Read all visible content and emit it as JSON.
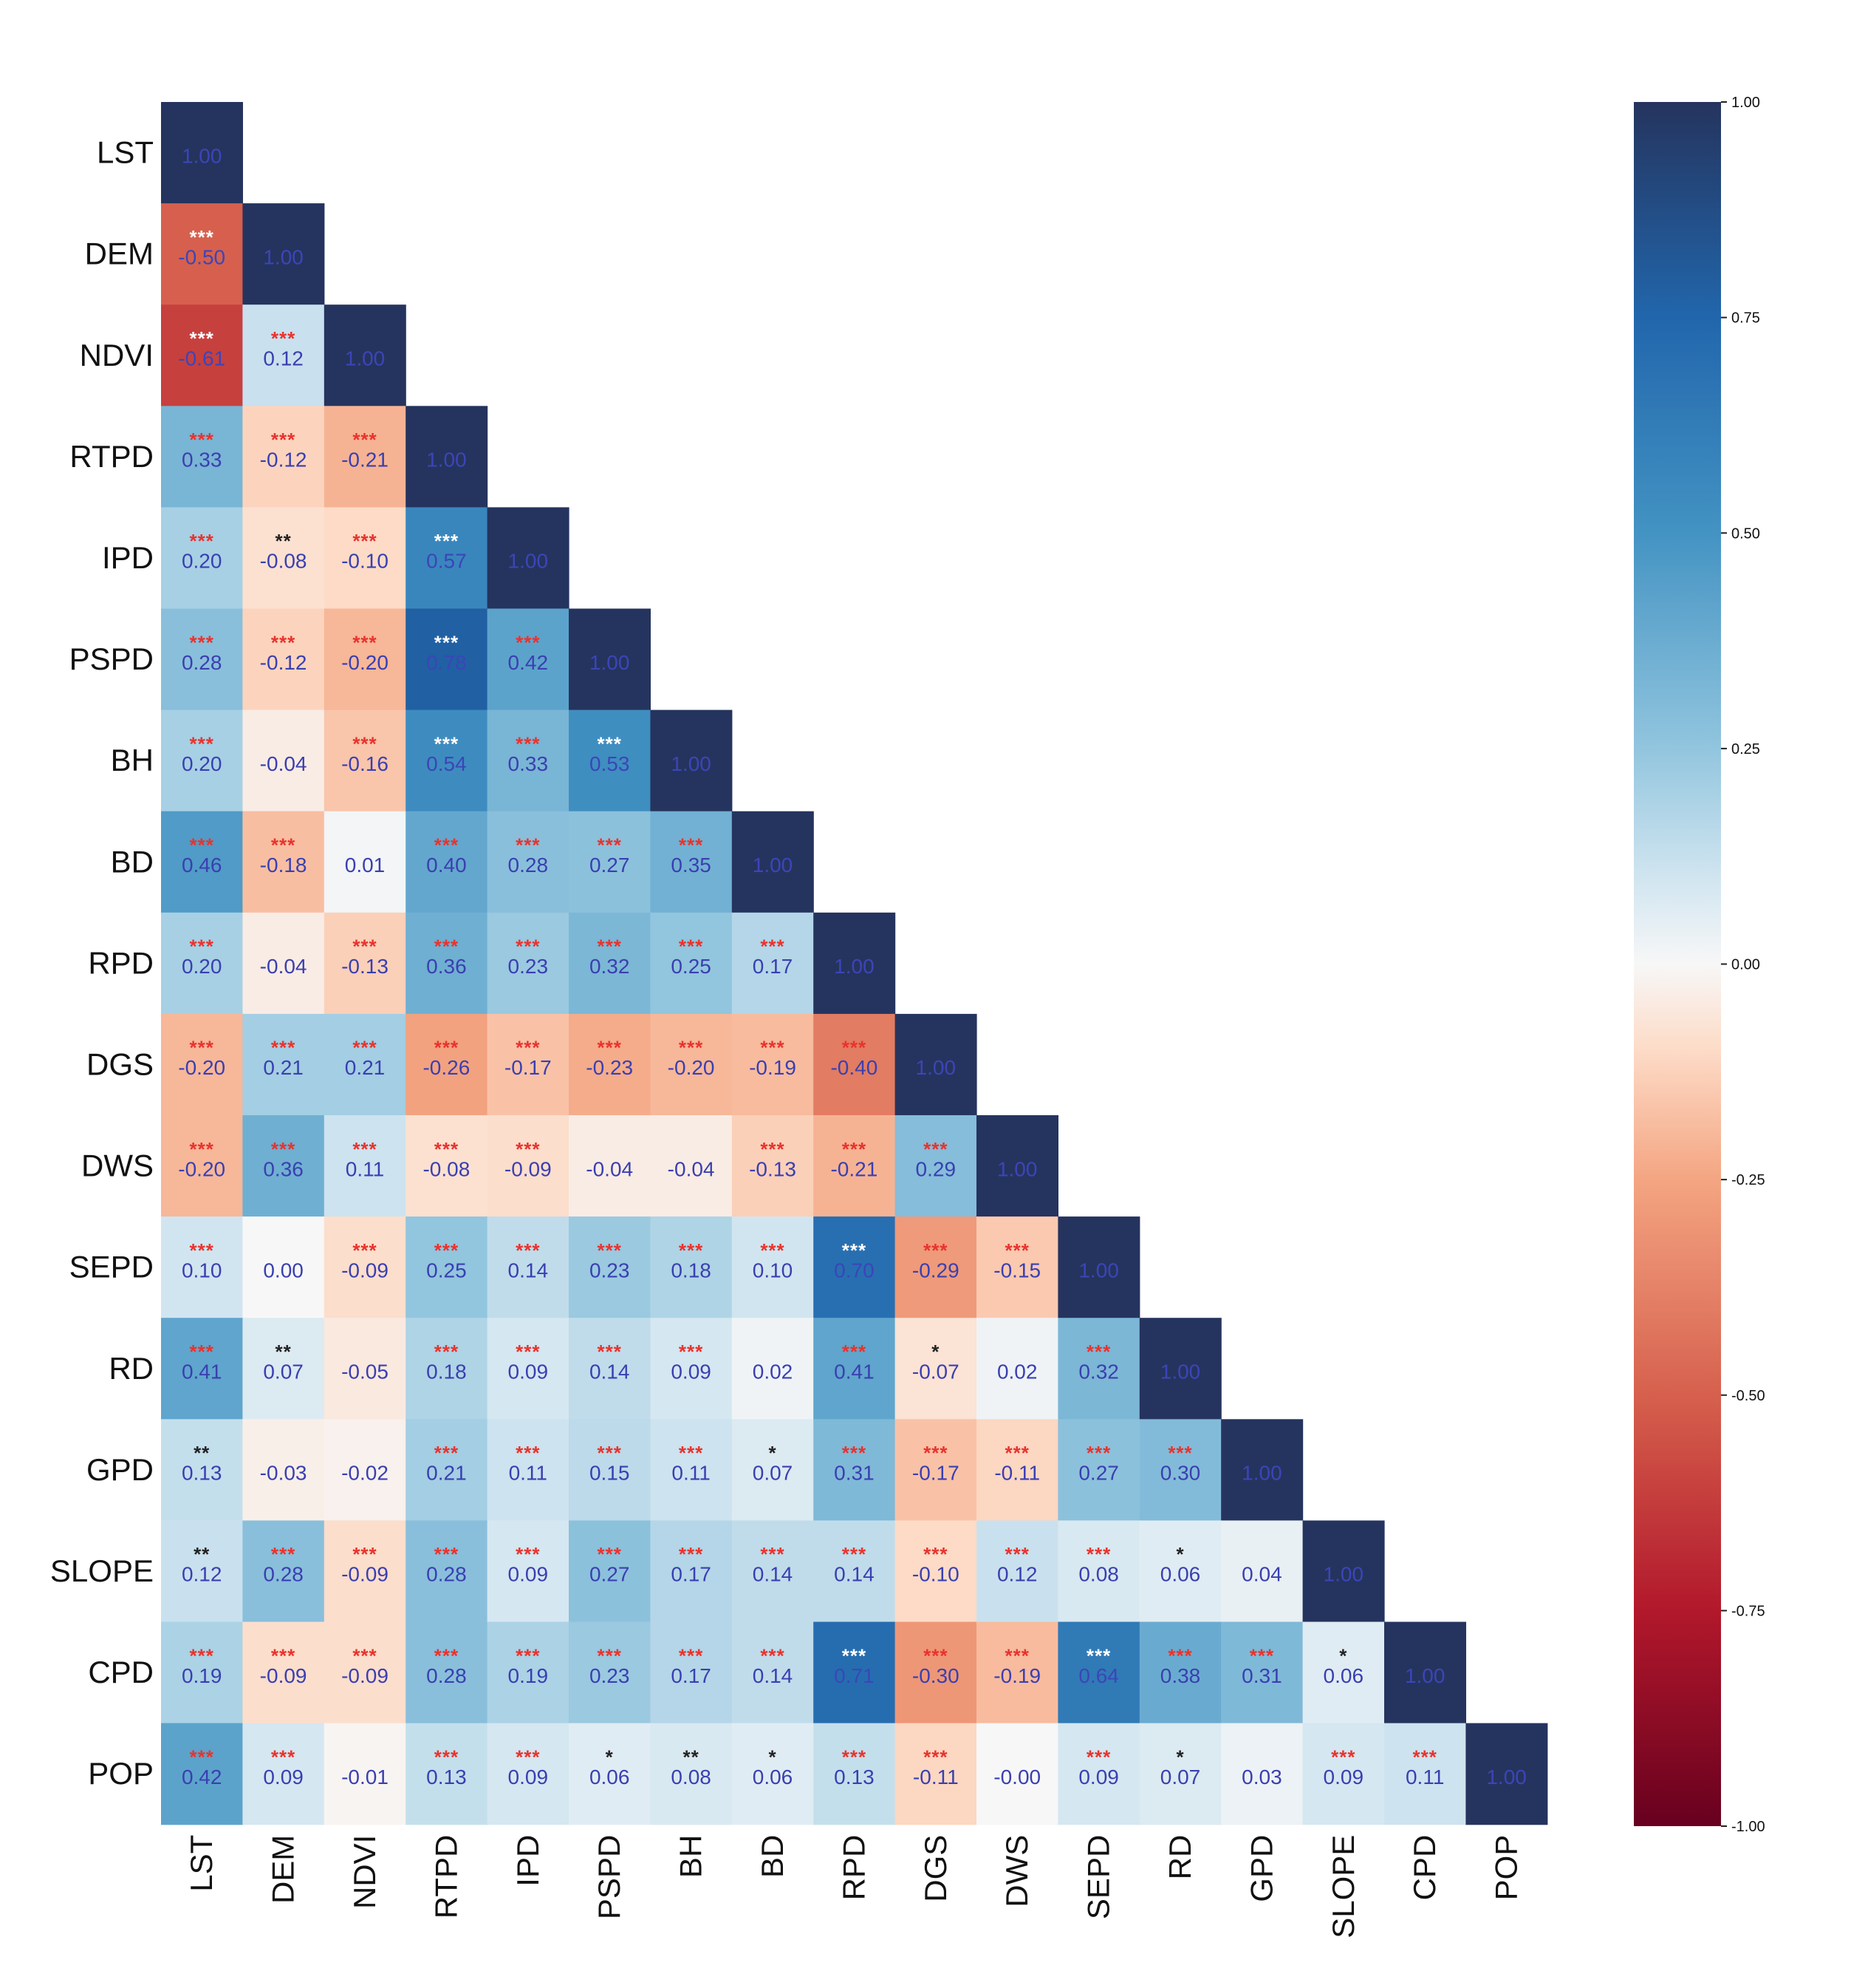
{
  "chart_data": {
    "type": "heatmap",
    "title": "",
    "xlabel": "",
    "ylabel": "",
    "layout": "lower-triangle",
    "labels": [
      "LST",
      "DEM",
      "NDVI",
      "RTPD",
      "IPD",
      "PSPD",
      "BH",
      "BD",
      "RPD",
      "DGS",
      "DWS",
      "SEPD",
      "RD",
      "GPD",
      "SLOPE",
      "CPD",
      "POP"
    ],
    "values": [
      [
        1.0
      ],
      [
        -0.5,
        1.0
      ],
      [
        -0.61,
        0.12,
        1.0
      ],
      [
        0.33,
        -0.12,
        -0.21,
        1.0
      ],
      [
        0.2,
        -0.08,
        -0.1,
        0.57,
        1.0
      ],
      [
        0.28,
        -0.12,
        -0.2,
        0.78,
        0.42,
        1.0
      ],
      [
        0.2,
        -0.04,
        -0.16,
        0.54,
        0.33,
        0.53,
        1.0
      ],
      [
        0.46,
        -0.18,
        0.01,
        0.4,
        0.28,
        0.27,
        0.35,
        1.0
      ],
      [
        0.2,
        -0.04,
        -0.13,
        0.36,
        0.23,
        0.32,
        0.25,
        0.17,
        1.0
      ],
      [
        -0.2,
        0.21,
        0.21,
        -0.26,
        -0.17,
        -0.23,
        -0.2,
        -0.19,
        -0.4,
        1.0
      ],
      [
        -0.2,
        0.36,
        0.11,
        -0.08,
        -0.09,
        -0.04,
        -0.04,
        -0.13,
        -0.21,
        0.29,
        1.0
      ],
      [
        0.1,
        0.0,
        -0.09,
        0.25,
        0.14,
        0.23,
        0.18,
        0.1,
        0.7,
        -0.29,
        -0.15,
        1.0
      ],
      [
        0.41,
        0.07,
        -0.05,
        0.18,
        0.09,
        0.14,
        0.09,
        0.02,
        0.41,
        -0.07,
        0.02,
        0.32,
        1.0
      ],
      [
        0.13,
        -0.03,
        -0.02,
        0.21,
        0.11,
        0.15,
        0.11,
        0.07,
        0.31,
        -0.17,
        -0.11,
        0.27,
        0.3,
        1.0
      ],
      [
        0.12,
        0.28,
        -0.09,
        0.28,
        0.09,
        0.27,
        0.17,
        0.14,
        0.14,
        -0.1,
        0.12,
        0.08,
        0.06,
        0.04,
        1.0
      ],
      [
        0.19,
        -0.09,
        -0.09,
        0.28,
        0.19,
        0.23,
        0.17,
        0.14,
        0.71,
        -0.3,
        -0.19,
        0.64,
        0.38,
        0.31,
        0.06,
        1.0
      ],
      [
        0.42,
        0.09,
        -0.01,
        0.13,
        0.09,
        0.06,
        0.08,
        0.06,
        0.13,
        -0.11,
        -0.0,
        0.09,
        0.07,
        0.03,
        0.09,
        0.11,
        1.0
      ]
    ],
    "significance": [
      [
        ""
      ],
      [
        "***",
        ""
      ],
      [
        "***",
        "***",
        ""
      ],
      [
        "***",
        "***",
        "***",
        ""
      ],
      [
        "***",
        "**",
        "***",
        "***",
        ""
      ],
      [
        "***",
        "***",
        "***",
        "***",
        "***",
        ""
      ],
      [
        "***",
        "",
        "***",
        "***",
        "***",
        "***",
        ""
      ],
      [
        "***",
        "***",
        "",
        "***",
        "***",
        "***",
        "***",
        ""
      ],
      [
        "***",
        "",
        "***",
        "***",
        "***",
        "***",
        "***",
        "***",
        ""
      ],
      [
        "***",
        "***",
        "***",
        "***",
        "***",
        "***",
        "***",
        "***",
        "***",
        ""
      ],
      [
        "***",
        "***",
        "***",
        "***",
        "***",
        "",
        "",
        "***",
        "***",
        "***",
        ""
      ],
      [
        "***",
        "",
        "***",
        "***",
        "***",
        "***",
        "***",
        "***",
        "***",
        "***",
        "***",
        ""
      ],
      [
        "***",
        "**",
        "",
        "***",
        "***",
        "***",
        "***",
        "",
        "***",
        "*",
        "",
        "***",
        ""
      ],
      [
        "**",
        "",
        "",
        "***",
        "***",
        "***",
        "***",
        "*",
        "***",
        "***",
        "***",
        "***",
        "***",
        ""
      ],
      [
        "**",
        "***",
        "***",
        "***",
        "***",
        "***",
        "***",
        "***",
        "***",
        "***",
        "***",
        "***",
        "*",
        "",
        ""
      ],
      [
        "***",
        "***",
        "***",
        "***",
        "***",
        "***",
        "***",
        "***",
        "***",
        "***",
        "***",
        "***",
        "***",
        "***",
        "*",
        ""
      ],
      [
        "***",
        "***",
        "",
        "***",
        "***",
        "*",
        "**",
        "*",
        "***",
        "***",
        "",
        "***",
        "*",
        "",
        "***",
        "***",
        ""
      ]
    ],
    "colorbar": {
      "range": [
        -1.0,
        1.0
      ],
      "ticks": [
        "1.00",
        "0.75",
        "0.50",
        "0.25",
        "0.00",
        "-0.25",
        "-0.50",
        "-0.75",
        "-1.00"
      ],
      "colormap": "RdBu"
    },
    "colors": {
      "cell_text": "#3a3fb0",
      "cell_text_dark": "#3c45b8",
      "sig_red": "#e8332d",
      "sig_black": "#222222",
      "sig_white": "#ffffff"
    }
  }
}
